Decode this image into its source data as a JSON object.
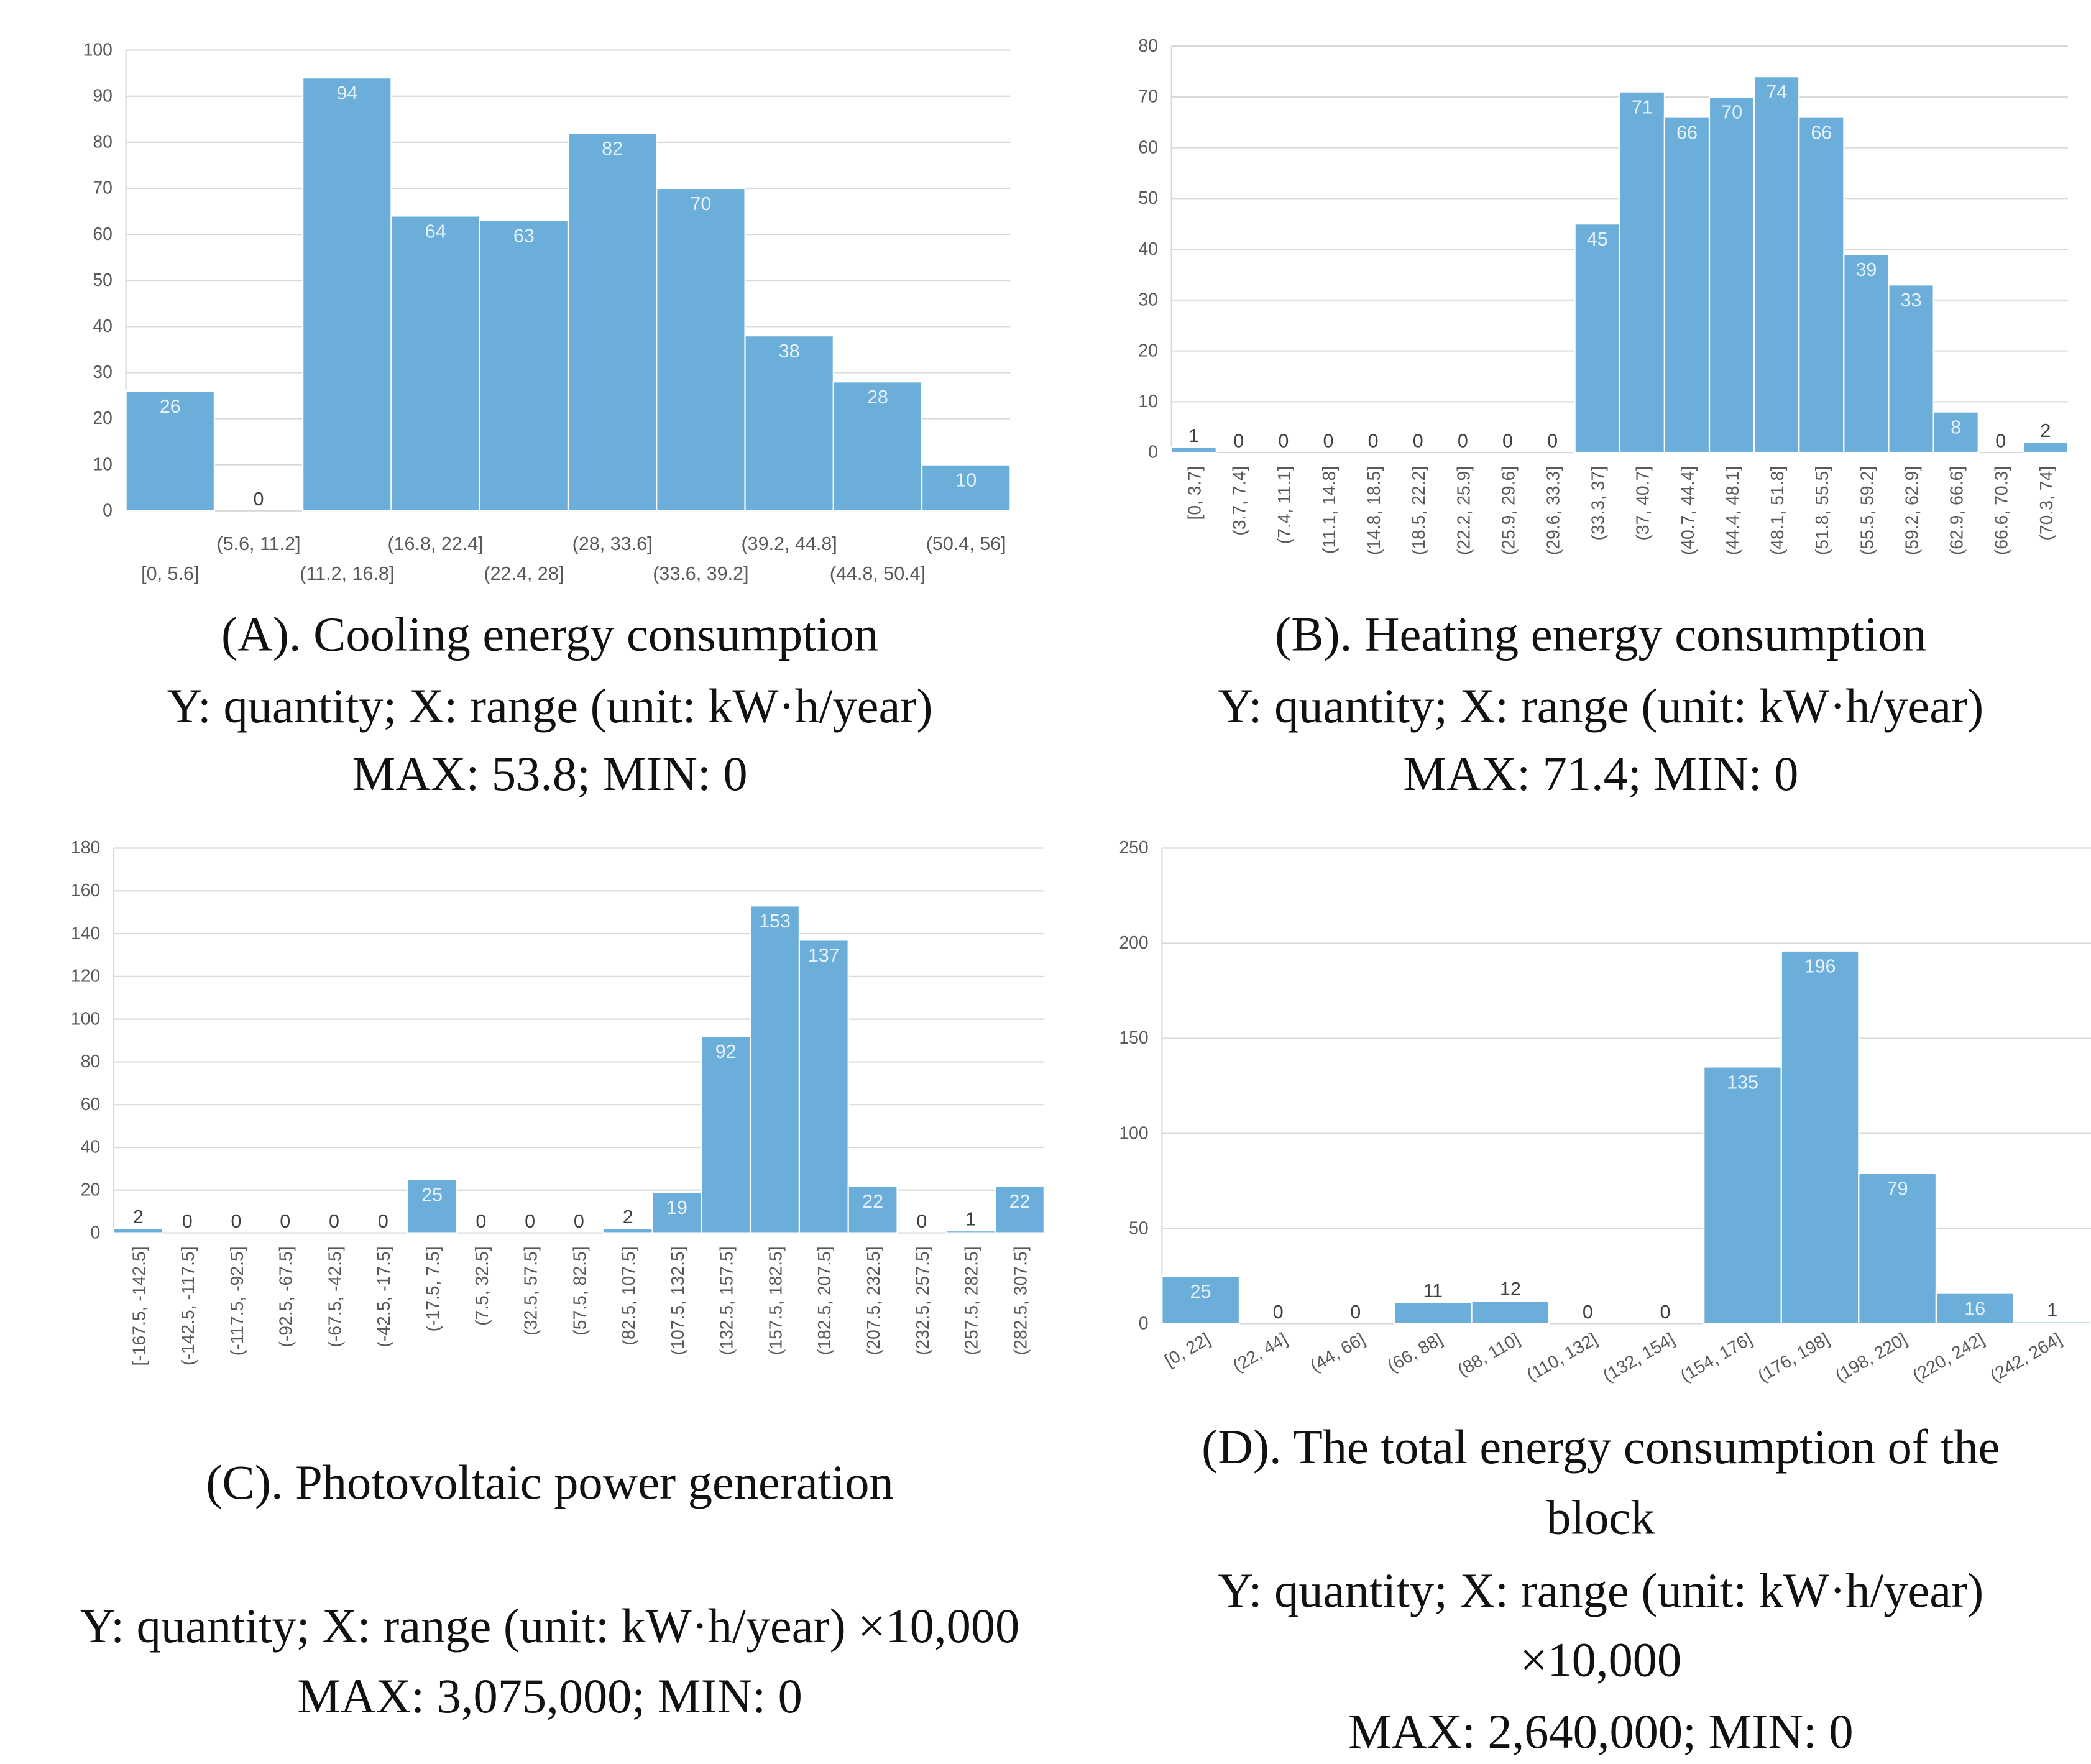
{
  "chart_data": [
    {
      "type": "bar",
      "caption_lines": [
        "(A). Cooling energy consumption",
        "Y: quantity; X: range (unit: kW·h/year)",
        "MAX: 53.8; MIN: 0"
      ],
      "categories": [
        "[0, 5.6]",
        "(5.6, 11.2]",
        "(11.2, 16.8]",
        "(16.8, 22.4]",
        "(22.4, 28]",
        "(28, 33.6]",
        "(33.6, 39.2]",
        "(39.2, 44.8]",
        "(44.8, 50.4]",
        "(50.4, 56]"
      ],
      "values": [
        26,
        0,
        94,
        64,
        63,
        82,
        70,
        38,
        28,
        10
      ],
      "color": "#6aaed9",
      "ylim": [
        0,
        100
      ],
      "yticks": [
        0,
        10,
        20,
        30,
        40,
        50,
        60,
        70,
        80,
        90,
        100
      ],
      "grid": true
    },
    {
      "type": "bar",
      "caption_lines": [
        "(B). Heating energy consumption",
        "Y: quantity; X: range (unit: kW·h/year)",
        "MAX: 71.4; MIN: 0"
      ],
      "categories": [
        "[0, 3.7]",
        "(3.7, 7.4]",
        "(7.4, 11.1]",
        "(11.1, 14.8]",
        "(14.8, 18.5]",
        "(18.5, 22.2]",
        "(22.2, 25.9]",
        "(25.9, 29.6]",
        "(29.6, 33.3]",
        "(33.3, 37]",
        "(37, 40.7]",
        "(40.7, 44.4]",
        "(44.4, 48.1]",
        "(48.1, 51.8]",
        "(51.8, 55.5]",
        "(55.5, 59.2]",
        "(59.2, 62.9]",
        "(62.9, 66.6]",
        "(66.6, 70.3]",
        "(70.3, 74]"
      ],
      "values": [
        1,
        0,
        0,
        0,
        0,
        0,
        0,
        0,
        0,
        45,
        71,
        66,
        70,
        74,
        66,
        39,
        33,
        8,
        0,
        2
      ],
      "color": "#6aaed9",
      "ylim": [
        0,
        80
      ],
      "yticks": [
        0,
        10,
        20,
        30,
        40,
        50,
        60,
        70,
        80
      ],
      "grid": true
    },
    {
      "type": "bar",
      "caption_lines": [
        "(C). Photovoltaic power generation",
        "Y: quantity; X: range (unit: kW·h/year) ×10,000",
        "MAX: 3,075,000; MIN: 0"
      ],
      "categories": [
        "[-167.5, -142.5]",
        "(-142.5, -117.5]",
        "(-117.5, -92.5]",
        "(-92.5, -67.5]",
        "(-67.5, -42.5]",
        "(-42.5, -17.5]",
        "(-17.5, 7.5]",
        "(7.5, 32.5]",
        "(32.5, 57.5]",
        "(57.5, 82.5]",
        "(82.5, 107.5]",
        "(107.5, 132.5]",
        "(132.5, 157.5]",
        "(157.5, 182.5]",
        "(182.5, 207.5]",
        "(207.5, 232.5]",
        "(232.5, 257.5]",
        "(257.5, 282.5]",
        "(282.5, 307.5]"
      ],
      "values": [
        2,
        0,
        0,
        0,
        0,
        0,
        25,
        0,
        0,
        0,
        2,
        19,
        92,
        153,
        137,
        22,
        0,
        1,
        22
      ],
      "color": "#6aaed9",
      "ylim": [
        0,
        180
      ],
      "yticks": [
        0,
        20,
        40,
        60,
        80,
        100,
        120,
        140,
        160,
        180
      ],
      "grid": true
    },
    {
      "type": "bar",
      "caption_lines": [
        "(D). The total energy consumption of the",
        "block",
        "Y: quantity; X: range (unit: kW·h/year)",
        "×10,000",
        "MAX: 2,640,000; MIN: 0"
      ],
      "categories": [
        "[0, 22]",
        "(22, 44]",
        "(44, 66]",
        "(66, 88]",
        "(88, 110]",
        "(110, 132]",
        "(132, 154]",
        "(154, 176]",
        "(176, 198]",
        "(198, 220]",
        "(220, 242]",
        "(242, 264]"
      ],
      "values": [
        25,
        0,
        0,
        11,
        12,
        0,
        0,
        135,
        196,
        79,
        16,
        1
      ],
      "color": "#6aaed9",
      "ylim": [
        0,
        250
      ],
      "yticks": [
        0,
        50,
        100,
        150,
        200,
        250
      ],
      "grid": true
    }
  ]
}
